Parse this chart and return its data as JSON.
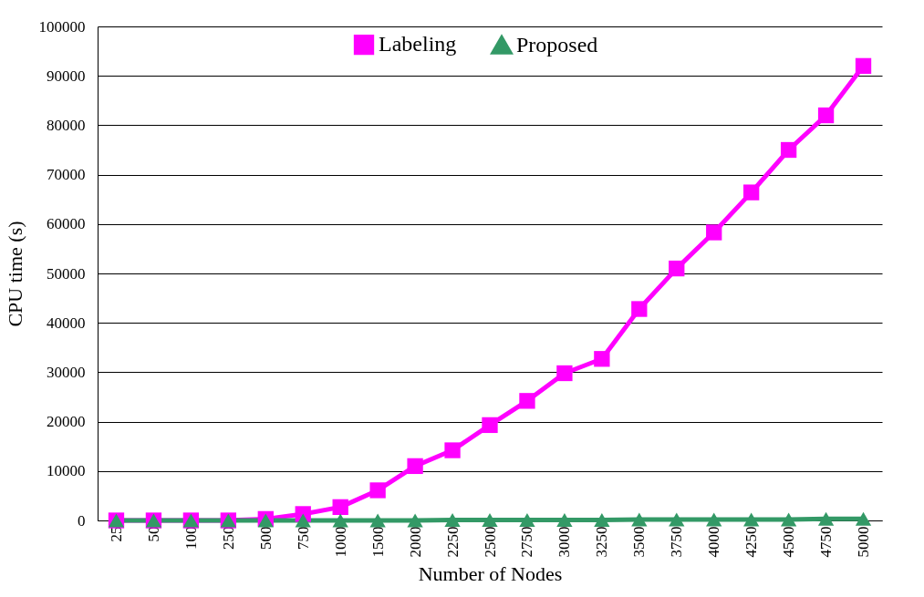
{
  "chart_data": {
    "type": "line",
    "xlabel": "Number of Nodes",
    "ylabel": "CPU time (s)",
    "categories": [
      "25",
      "50",
      "100",
      "250",
      "500",
      "750",
      "1000",
      "1500",
      "2000",
      "2250",
      "2500",
      "2750",
      "3000",
      "3250",
      "3500",
      "3750",
      "4000",
      "4250",
      "4500",
      "4750",
      "5000"
    ],
    "series": [
      {
        "name": "Labeling",
        "color": "#ff00ff",
        "marker": "square",
        "values": [
          0,
          0,
          0,
          0,
          300,
          1300,
          2700,
          6100,
          11000,
          14200,
          19300,
          24200,
          29800,
          32700,
          42800,
          51000,
          58300,
          66400,
          75000,
          82000,
          92000
        ]
      },
      {
        "name": "Proposed",
        "color": "#339966",
        "marker": "triangle",
        "values": [
          0,
          0,
          0,
          0,
          0,
          0,
          0,
          0,
          0,
          100,
          100,
          100,
          100,
          100,
          200,
          200,
          200,
          200,
          200,
          300,
          300
        ]
      }
    ],
    "ylim": [
      0,
      100000
    ],
    "yticks": [
      0,
      10000,
      20000,
      30000,
      40000,
      50000,
      60000,
      70000,
      80000,
      90000,
      100000
    ],
    "grid": "y",
    "legend": "top",
    "line_style": "solid"
  }
}
